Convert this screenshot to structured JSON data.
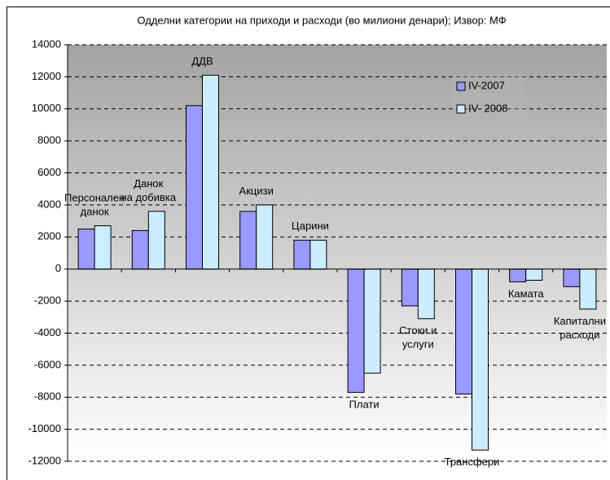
{
  "chart_data": {
    "type": "bar",
    "title": "Одделни категории на приходи и расходи (во милиони денари); Извор: МФ",
    "categories": [
      "Персонален\nданок",
      "Данок\nна добивка",
      "ДДВ",
      "Акцизи",
      "Царини",
      "Плати",
      "Стоки и\nуслуги",
      "Трансфери",
      "Камата",
      "Капитални\nрасходи"
    ],
    "series": [
      {
        "name": "IV-2007",
        "color": "#9999ff",
        "values": [
          2500,
          2400,
          10200,
          3600,
          1800,
          -7700,
          -2300,
          -7800,
          -800,
          -1100
        ]
      },
      {
        "name": "IV- 2008",
        "color": "#ccecff",
        "values": [
          2700,
          3600,
          12100,
          4000,
          1800,
          -6500,
          -3100,
          -11300,
          -700,
          -2500
        ]
      }
    ],
    "ylim": [
      -12000,
      14000
    ],
    "yticks": [
      -12000,
      -10000,
      -8000,
      -6000,
      -4000,
      -2000,
      0,
      2000,
      4000,
      6000,
      8000,
      10000,
      12000,
      14000
    ],
    "grid": true,
    "legend": "upper right"
  }
}
